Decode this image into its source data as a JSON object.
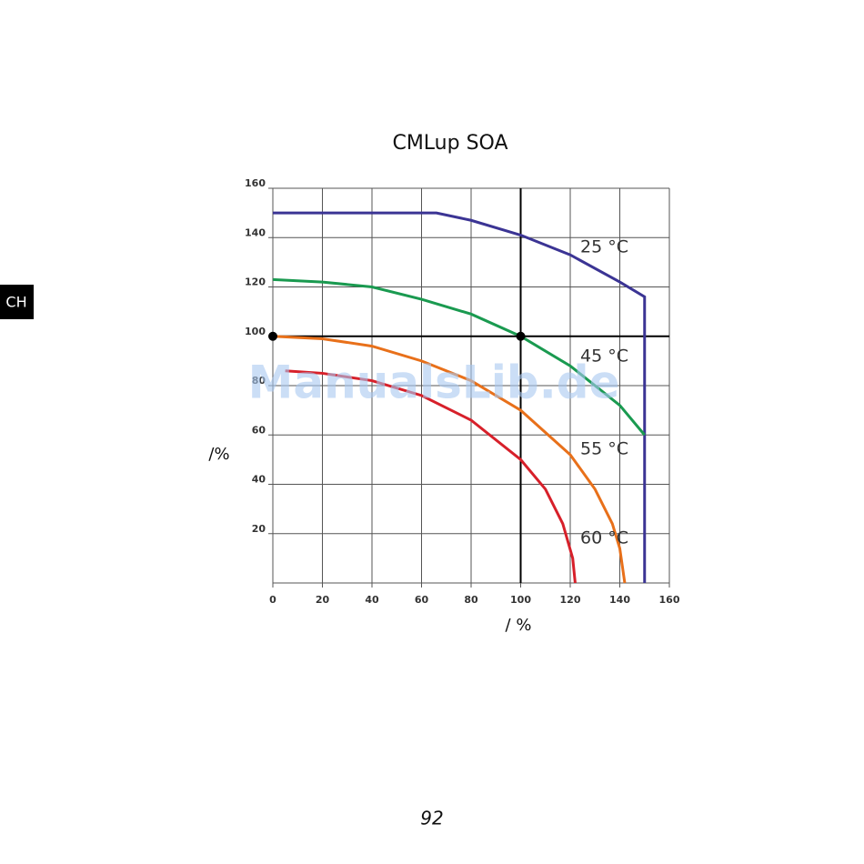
{
  "side_tab": "CH",
  "page_number": "92",
  "watermark": "ManualsLib.de",
  "chart_data": {
    "type": "line",
    "title": "CMLup SOA",
    "x_label": "/ %",
    "y_label": "/%",
    "xlim": [
      0,
      160
    ],
    "ylim": [
      0,
      160
    ],
    "xticks": [
      0,
      20,
      40,
      60,
      80,
      100,
      120,
      140,
      160
    ],
    "yticks": [
      20,
      40,
      60,
      80,
      100,
      120,
      140,
      160
    ],
    "grid": true,
    "reference_lines": {
      "x": 100,
      "y": 100
    },
    "markers": [
      {
        "x": 0,
        "y": 100
      },
      {
        "x": 100,
        "y": 100
      }
    ],
    "series": [
      {
        "name": "25 °C",
        "color": "#3b3494",
        "x": [
          0,
          66,
          80,
          100,
          120,
          140,
          150,
          150
        ],
        "values": [
          150,
          150,
          147,
          141,
          133,
          122,
          116,
          0
        ]
      },
      {
        "name": "45 °C",
        "color": "#1a9a50",
        "x": [
          0,
          20,
          40,
          60,
          80,
          100,
          120,
          140,
          150
        ],
        "values": [
          123,
          122,
          120,
          115,
          109,
          100,
          88,
          72,
          60
        ]
      },
      {
        "name": "55 °C",
        "color": "#e8701a",
        "x": [
          0,
          20,
          40,
          60,
          80,
          100,
          120,
          130,
          137,
          140,
          142
        ],
        "values": [
          100,
          99,
          96,
          90,
          82,
          70,
          52,
          38,
          24,
          14,
          0
        ]
      },
      {
        "name": "60 °C",
        "color": "#d7202a",
        "x": [
          5,
          20,
          40,
          60,
          80,
          100,
          110,
          117,
          121,
          122
        ],
        "values": [
          86,
          85,
          82,
          76,
          66,
          50,
          38,
          24,
          10,
          0
        ]
      }
    ]
  }
}
